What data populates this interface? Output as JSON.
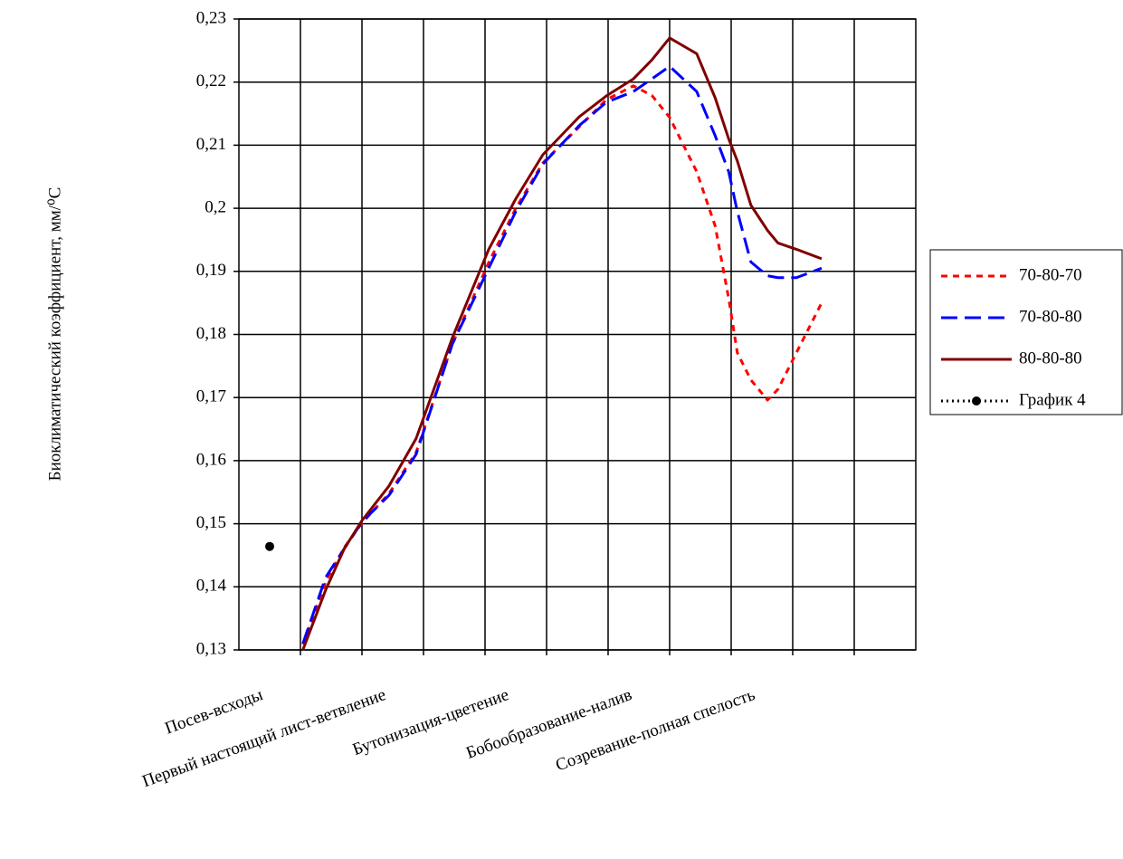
{
  "chart_data": {
    "type": "line",
    "ylabel": "Биоклиматический коэффициент, мм/⁰С",
    "xlim": [
      -0.5,
      10.5
    ],
    "xticks": [
      {
        "value": 0,
        "label": "Посев-всходы"
      },
      {
        "value": 2,
        "label": "Первый настоящий лист-ветвление"
      },
      {
        "value": 4,
        "label": "Бутонизация-цветение"
      },
      {
        "value": 6,
        "label": "Бобообразование-налив"
      },
      {
        "value": 8,
        "label": "Созревание-полная спелость"
      }
    ],
    "xgrid": [
      0.5,
      1.5,
      2.5,
      3.5,
      4.5,
      5.5,
      6.5,
      7.5,
      8.5,
      9.5
    ],
    "ylim": [
      0.13,
      0.23
    ],
    "yticks": [
      {
        "value": 0.13,
        "label": "0,13"
      },
      {
        "value": 0.14,
        "label": "0,14"
      },
      {
        "value": 0.15,
        "label": "0,15"
      },
      {
        "value": 0.16,
        "label": "0,16"
      },
      {
        "value": 0.17,
        "label": "0,17"
      },
      {
        "value": 0.18,
        "label": "0,18"
      },
      {
        "value": 0.19,
        "label": "0,19"
      },
      {
        "value": 0.2,
        "label": "0,2"
      },
      {
        "value": 0.21,
        "label": "0,21"
      },
      {
        "value": 0.22,
        "label": "0,22"
      },
      {
        "value": 0.23,
        "label": "0,23"
      }
    ],
    "grid": true,
    "legend": "right",
    "series": [
      {
        "name": "70-80-70",
        "color": "#ff0000",
        "dash": "7,6",
        "x": [
          0.54,
          0.91,
          1.21,
          1.5,
          1.94,
          2.38,
          2.97,
          3.56,
          4.0,
          4.44,
          5.03,
          5.47,
          5.91,
          6.21,
          6.5,
          6.94,
          7.24,
          7.46,
          7.6,
          7.82,
          8.09,
          8.26,
          8.56,
          8.97
        ],
        "values": [
          0.1309,
          0.1408,
          0.1462,
          0.1501,
          0.1548,
          0.1613,
          0.1785,
          0.1914,
          0.2,
          0.2072,
          0.2129,
          0.2172,
          0.2194,
          0.2179,
          0.2144,
          0.2058,
          0.1972,
          0.1857,
          0.1771,
          0.1728,
          0.1696,
          0.1713,
          0.1771,
          0.185
        ]
      },
      {
        "name": "70-80-80",
        "color": "#0000ff",
        "dash": "18,8",
        "x": [
          0.54,
          0.91,
          1.21,
          1.5,
          1.94,
          2.38,
          2.97,
          3.56,
          4.0,
          4.44,
          5.03,
          5.47,
          5.91,
          6.21,
          6.5,
          6.94,
          7.24,
          7.46,
          7.6,
          7.82,
          8.09,
          8.26,
          8.56,
          8.97
        ],
        "values": [
          0.131,
          0.1415,
          0.146,
          0.1503,
          0.1545,
          0.161,
          0.1785,
          0.1905,
          0.1995,
          0.207,
          0.2131,
          0.2168,
          0.2185,
          0.2205,
          0.2225,
          0.2185,
          0.2115,
          0.2058,
          0.1995,
          0.1915,
          0.1893,
          0.189,
          0.189,
          0.1905
        ]
      },
      {
        "name": "80-80-80",
        "color": "#800000",
        "dash": "none",
        "x": [
          0.54,
          0.91,
          1.21,
          1.5,
          1.94,
          2.38,
          2.97,
          3.56,
          4.0,
          4.44,
          5.03,
          5.47,
          5.91,
          6.21,
          6.5,
          6.94,
          7.24,
          7.46,
          7.6,
          7.82,
          8.09,
          8.26,
          8.56,
          8.97
        ],
        "values": [
          0.13,
          0.1395,
          0.146,
          0.1505,
          0.156,
          0.1635,
          0.1795,
          0.1935,
          0.2015,
          0.2085,
          0.2145,
          0.2178,
          0.2205,
          0.2235,
          0.227,
          0.2245,
          0.2175,
          0.211,
          0.2075,
          0.2005,
          0.1965,
          0.1945,
          0.1935,
          0.192
        ]
      },
      {
        "name": "График 4",
        "color": "#000000",
        "dash": "2,4",
        "marker": true,
        "x": [
          0
        ],
        "values": [
          0.1464
        ]
      }
    ]
  }
}
